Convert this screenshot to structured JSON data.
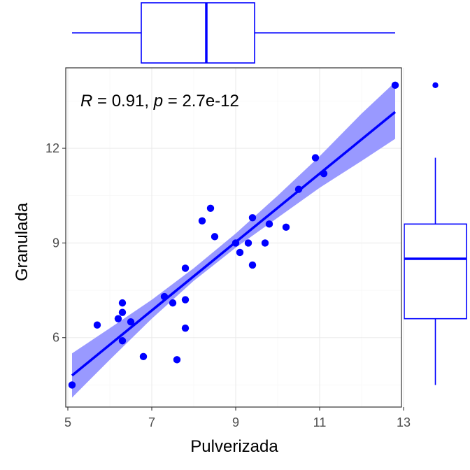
{
  "chart_data": {
    "type": "scatter",
    "title": "",
    "xlabel": "Pulverizada",
    "ylabel": "Granulada",
    "xlim": [
      4.95,
      12.95
    ],
    "ylim": [
      3.8,
      14.55
    ],
    "x_ticks": [
      5,
      7,
      9,
      11,
      13
    ],
    "y_ticks": [
      6,
      9,
      12
    ],
    "x_tick_labels": [
      "5",
      "7",
      "9",
      "11",
      "13"
    ],
    "y_tick_labels": [
      "6",
      "9",
      "12"
    ],
    "grid": true,
    "annotation": {
      "r_symbol": "R",
      "r_text": " = 0.91, ",
      "p_symbol": "p",
      "p_text": " = 2.7e-12"
    },
    "points": [
      {
        "x": 5.1,
        "y": 4.5
      },
      {
        "x": 5.7,
        "y": 6.4
      },
      {
        "x": 6.2,
        "y": 6.6
      },
      {
        "x": 6.3,
        "y": 6.8
      },
      {
        "x": 6.3,
        "y": 7.1
      },
      {
        "x": 6.3,
        "y": 5.9
      },
      {
        "x": 6.5,
        "y": 6.5
      },
      {
        "x": 6.8,
        "y": 5.4
      },
      {
        "x": 7.3,
        "y": 7.3
      },
      {
        "x": 7.5,
        "y": 7.1
      },
      {
        "x": 7.6,
        "y": 5.3
      },
      {
        "x": 7.8,
        "y": 8.2
      },
      {
        "x": 7.8,
        "y": 7.2
      },
      {
        "x": 7.8,
        "y": 6.3
      },
      {
        "x": 8.2,
        "y": 9.7
      },
      {
        "x": 8.4,
        "y": 10.1
      },
      {
        "x": 8.5,
        "y": 9.2
      },
      {
        "x": 9.0,
        "y": 9.0
      },
      {
        "x": 9.1,
        "y": 8.7
      },
      {
        "x": 9.3,
        "y": 9.0
      },
      {
        "x": 9.4,
        "y": 9.8
      },
      {
        "x": 9.4,
        "y": 8.3
      },
      {
        "x": 9.7,
        "y": 9.0
      },
      {
        "x": 9.8,
        "y": 9.6
      },
      {
        "x": 10.2,
        "y": 9.5
      },
      {
        "x": 10.5,
        "y": 10.7
      },
      {
        "x": 10.9,
        "y": 11.7
      },
      {
        "x": 11.1,
        "y": 11.2
      },
      {
        "x": 12.8,
        "y": 14.0
      }
    ],
    "regression": {
      "x_start": 5.1,
      "y_start": 4.8,
      "x_end": 12.8,
      "y_end": 13.15,
      "band": [
        {
          "x": 5.1,
          "lo": 4.1,
          "hi": 5.5
        },
        {
          "x": 6.0,
          "lo": 5.3,
          "hi": 6.3
        },
        {
          "x": 7.0,
          "lo": 6.6,
          "hi": 7.2
        },
        {
          "x": 8.0,
          "lo": 7.8,
          "hi": 8.2
        },
        {
          "x": 9.0,
          "lo": 8.85,
          "hi": 9.3
        },
        {
          "x": 10.0,
          "lo": 9.8,
          "hi": 10.5
        },
        {
          "x": 11.0,
          "lo": 10.75,
          "hi": 11.75
        },
        {
          "x": 12.0,
          "lo": 11.6,
          "hi": 13.1
        },
        {
          "x": 12.8,
          "lo": 12.3,
          "hi": 14.1
        }
      ]
    },
    "boxplot_x": {
      "whisker_low": 5.1,
      "q1": 6.75,
      "median": 8.3,
      "q3": 9.45,
      "whisker_high": 12.8
    },
    "boxplot_y": {
      "whisker_low": 4.5,
      "q1": 6.6,
      "median": 8.5,
      "q3": 9.6,
      "whisker_high": 11.7,
      "outliers": [
        14.0
      ]
    },
    "colors": {
      "points": "#0000ff",
      "line": "#0000ff",
      "band": "#9999ff",
      "box": "#0000ff",
      "grid_major": "#ebebeb",
      "grid_minor": "#f5f5f5",
      "panel_border": "#333333"
    }
  }
}
